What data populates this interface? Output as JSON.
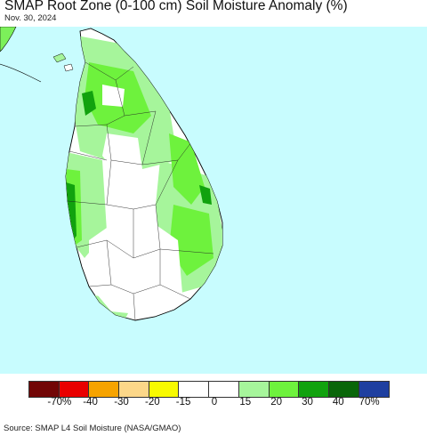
{
  "header": {
    "title": "SMAP Root Zone (0-100 cm) Soil Moisture Anomaly (%)",
    "date": "Nov. 30, 2024"
  },
  "map": {
    "ocean_color": "#c8fcfe",
    "land_color": "#ffffff",
    "region": "Sri Lanka"
  },
  "legend": {
    "colors": [
      "#720606",
      "#e90000",
      "#f6a300",
      "#fcd789",
      "#f8fa00",
      "#ffffff",
      "#ffffff",
      "#a6f59b",
      "#6ef23d",
      "#11a20e",
      "#096609",
      "#1e3fa0"
    ],
    "tick_labels": [
      "-70%",
      "-40",
      "-30",
      "-20",
      "-15",
      "0",
      "15",
      "20",
      "30",
      "40",
      "70%"
    ]
  },
  "footer": {
    "source": "Source: SMAP L4 Soil Moisture (NASA/GMAO)"
  }
}
